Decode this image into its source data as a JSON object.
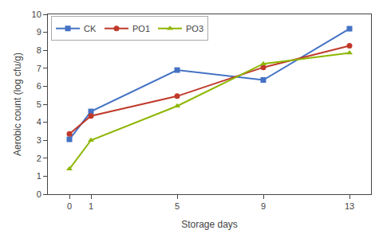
{
  "chart_data": {
    "type": "line",
    "x": [
      0,
      1,
      5,
      9,
      13
    ],
    "series": [
      {
        "name": "CK",
        "color": "#4472C4",
        "marker": "square",
        "values": [
          3.05,
          4.6,
          6.9,
          6.35,
          9.2
        ]
      },
      {
        "name": "PO1",
        "color": "#C0392B",
        "marker": "circle",
        "values": [
          3.35,
          4.35,
          5.45,
          7.05,
          8.25
        ]
      },
      {
        "name": "PO3",
        "color": "#8DB600",
        "marker": "triangle-up",
        "values": [
          1.4,
          3.0,
          4.9,
          7.25,
          7.85
        ]
      }
    ],
    "xlabel": "Storage days",
    "ylabel": "Aerobic count (log cfu/g)",
    "xlim": [
      -1,
      14
    ],
    "xticks": [
      0,
      1,
      5,
      9,
      13
    ],
    "ylim": [
      0,
      10
    ],
    "yticks": [
      0,
      1,
      2,
      3,
      4,
      5,
      6,
      7,
      8,
      9,
      10
    ],
    "grid": false,
    "legend": "upper left"
  }
}
